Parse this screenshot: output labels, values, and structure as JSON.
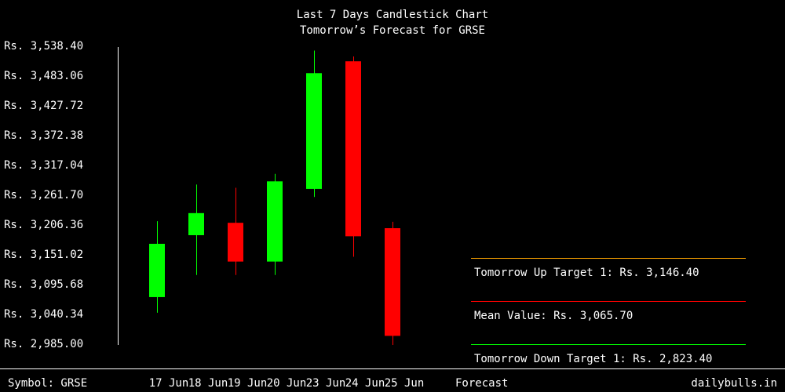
{
  "chart_data": {
    "type": "candlestick",
    "title": "Last 7 Days Candlestick Chart",
    "subtitle": "Tomorrow’s Forecast for GRSE",
    "y_tick_labels": [
      "Rs. 3,538.40",
      "Rs. 3,483.06",
      "Rs. 3,427.72",
      "Rs. 3,372.38",
      "Rs. 3,317.04",
      "Rs. 3,261.70",
      "Rs. 3,206.36",
      "Rs. 3,151.02",
      "Rs. 3,095.68",
      "Rs. 3,040.34",
      "Rs. 2,985.00"
    ],
    "ylim": [
      2985.0,
      3538.4
    ],
    "categories": [
      "17 Jun",
      "18 Jun",
      "19 Jun",
      "20 Jun",
      "23 Jun",
      "24 Jun",
      "25 Jun"
    ],
    "candles": [
      {
        "open": 3071.0,
        "high": 3212.0,
        "low": 3042.0,
        "close": 3170.0
      },
      {
        "open": 3186.0,
        "high": 3280.0,
        "low": 3112.0,
        "close": 3227.0
      },
      {
        "open": 3209.0,
        "high": 3274.0,
        "low": 3112.0,
        "close": 3137.0
      },
      {
        "open": 3137.0,
        "high": 3300.0,
        "low": 3112.0,
        "close": 3286.0
      },
      {
        "open": 3272.0,
        "high": 3529.0,
        "low": 3257.0,
        "close": 3487.0
      },
      {
        "open": 3509.0,
        "high": 3518.0,
        "low": 3146.0,
        "close": 3184.0
      },
      {
        "open": 3199.0,
        "high": 3211.0,
        "low": 2982.0,
        "close": 2999.0
      }
    ],
    "colors": {
      "up": "#00ff00",
      "down": "#ff0000"
    },
    "forecast_label": "Forecast",
    "forecast": [
      {
        "label": "Tomorrow Up Target 1: Rs. 3,146.40",
        "color": "#ffa500"
      },
      {
        "label": "Mean Value: Rs. 3,065.70",
        "color": "#ff0000"
      },
      {
        "label": "Tomorrow Down Target 1: Rs. 2,823.40",
        "color": "#00ff00"
      }
    ]
  },
  "footer": {
    "symbol": "Symbol: GRSE",
    "brand": "dailybulls.in"
  }
}
